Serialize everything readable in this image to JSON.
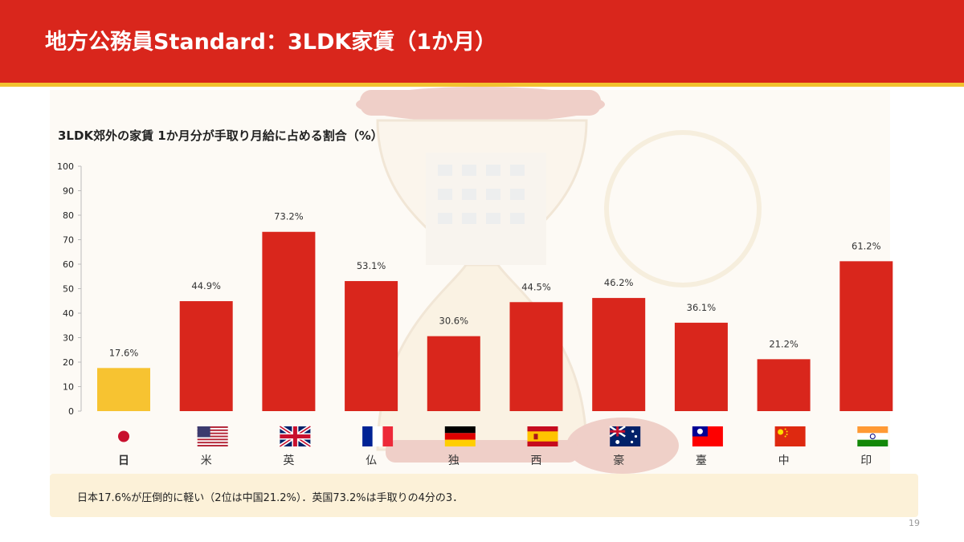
{
  "slide": {
    "title": "地方公務員Standard：3LDK家賃（1か月）",
    "caption": "日本17.6%が圧倒的に軽い（2位は中国21.2%）．英国73.2%は手取りの4分の3．",
    "page_number": "19"
  },
  "colors": {
    "header": "#d9261c",
    "header_stripe": "#f2c230",
    "bar_default": "#d9261c",
    "bar_highlight": "#f7c331",
    "highlight_label": "#8a6d00",
    "caption_bg": "#fcf1d8"
  },
  "chart_data": {
    "type": "bar",
    "title": "3LDK郊外の家賃 1か月分が手取り月給に占める割合（%）",
    "categories": [
      "日",
      "米",
      "英",
      "仏",
      "独",
      "西",
      "豪",
      "臺",
      "中",
      "印"
    ],
    "flags": [
      "japan-flag",
      "usa-flag",
      "uk-flag",
      "france-flag",
      "germany-flag",
      "spain-flag",
      "australia-flag",
      "taiwan-flag",
      "china-flag",
      "india-flag"
    ],
    "values": [
      17.6,
      44.9,
      73.2,
      53.1,
      30.6,
      44.5,
      46.2,
      36.1,
      21.2,
      61.2
    ],
    "value_labels": [
      "17.6%",
      "44.9%",
      "73.2%",
      "53.1%",
      "30.6%",
      "44.5%",
      "46.2%",
      "36.1%",
      "21.2%",
      "61.2%"
    ],
    "highlight_index": 0,
    "ylim": [
      0,
      100
    ],
    "yticks": [
      0,
      10,
      20,
      30,
      40,
      50,
      60,
      70,
      80,
      90,
      100
    ],
    "grid": false,
    "legend": "none"
  }
}
